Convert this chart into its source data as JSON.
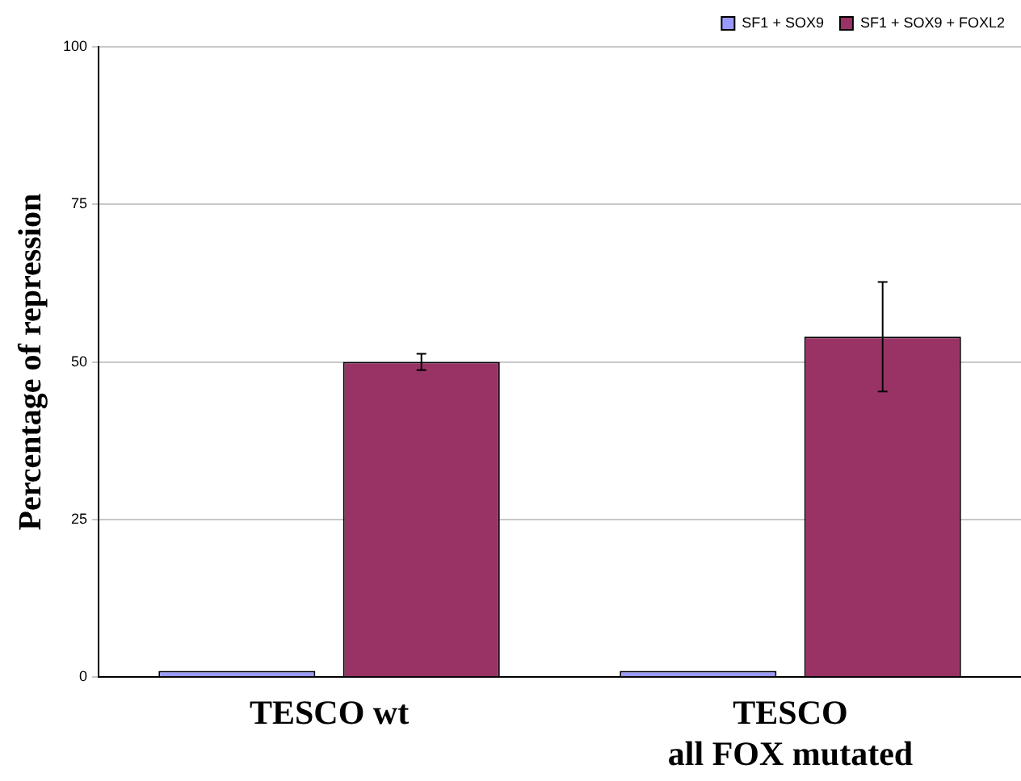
{
  "chart_data": {
    "type": "bar",
    "ylabel": "Percentage of repression",
    "categories": [
      "TESCO wt",
      "TESCO\nall FOX mutated"
    ],
    "series": [
      {
        "name": "SF1 + SOX9",
        "color": "#9999ff",
        "values": [
          1,
          1
        ]
      },
      {
        "name": "SF1 + SOX9 + FOXL2",
        "color": "#993366",
        "values": [
          50,
          54
        ],
        "errors": [
          1.3,
          8.7
        ]
      }
    ],
    "ylim": [
      0,
      100
    ],
    "yticks": [
      0,
      25,
      50,
      75,
      100
    ],
    "grid": "y",
    "legend": "top right"
  }
}
